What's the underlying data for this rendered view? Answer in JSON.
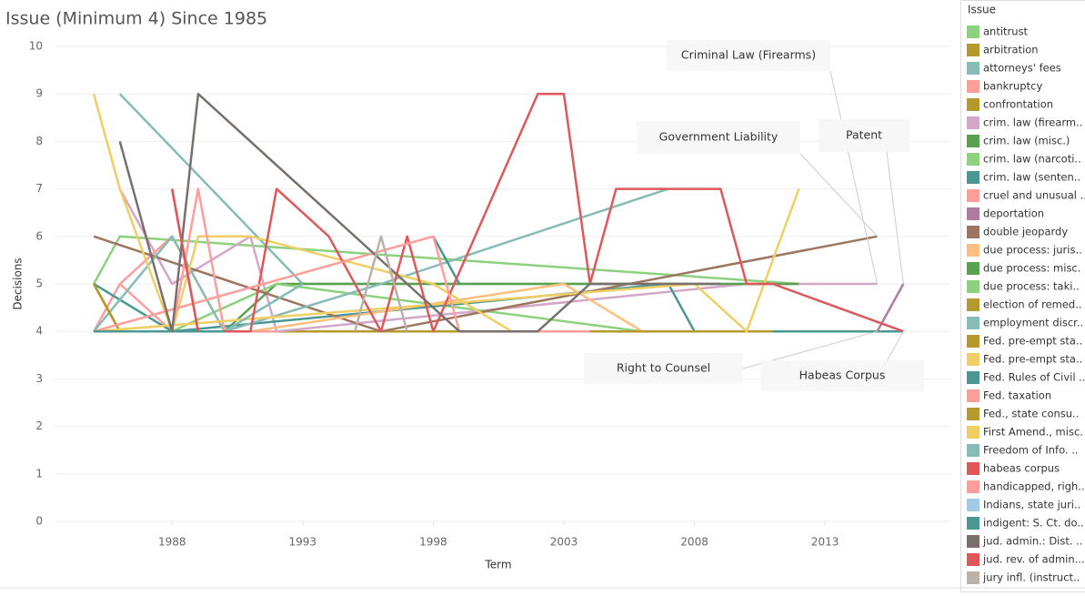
{
  "chart_data": {
    "type": "line",
    "title": "Issue  (Minimum 4) Since 1985",
    "x_label": "Term",
    "y_label": "Decisions",
    "legend_title": "Issue",
    "xlim": [
      1983.5,
      2017.8
    ],
    "xticks": [
      1988,
      1993,
      1998,
      2003,
      2008,
      2013
    ],
    "ylim": [
      0,
      10
    ],
    "yticks": [
      0,
      1,
      2,
      3,
      4,
      5,
      6,
      7,
      8,
      9,
      10
    ],
    "grid": true,
    "legend": "right",
    "annotations": [
      "Criminal Law (Firearms)",
      "Government Liability",
      "Patent",
      "Right to Counsel",
      "Habeas Corpus"
    ],
    "series": [
      {
        "name": "antitrust",
        "color": "#8cd17d",
        "x": [
          1985,
          1986,
          2012
        ],
        "values": [
          5,
          6,
          5
        ]
      },
      {
        "name": "arbitration",
        "color": "#b6992d",
        "x": [
          1985,
          1986,
          1988
        ],
        "values": [
          5,
          4,
          4
        ]
      },
      {
        "name": "attorneys' fees",
        "color": "#86bcb6",
        "x": [
          1986,
          1993,
          2012
        ],
        "values": [
          9,
          5,
          5
        ]
      },
      {
        "name": "bankruptcy",
        "color": "#ff9d9a",
        "x": [
          1985,
          1986,
          1988,
          1998
        ],
        "values": [
          4,
          5,
          4,
          4
        ]
      },
      {
        "name": "confrontation",
        "color": "#b6992d",
        "x": [
          1985,
          1986,
          2011
        ],
        "values": [
          5,
          4,
          4
        ]
      },
      {
        "name": "crim. law (firearm..",
        "color": "#d4a6c8",
        "x": [
          1986,
          1988,
          1991,
          1992,
          2010,
          2015
        ],
        "values": [
          7,
          5,
          6,
          4,
          5,
          5
        ]
      },
      {
        "name": "crim. law (misc.)",
        "color": "#59a14f",
        "x": [
          1985,
          1990,
          1992,
          2012
        ],
        "values": [
          4,
          4,
          5,
          5
        ]
      },
      {
        "name": "crim. law (narcoti..",
        "color": "#8cd17d",
        "x": [
          1985,
          1988,
          1992,
          2006
        ],
        "values": [
          4,
          4,
          5,
          4
        ]
      },
      {
        "name": "crim. law (senten..",
        "color": "#499894",
        "x": [
          1985,
          1988,
          2007,
          2008,
          2016
        ],
        "values": [
          5,
          4,
          5,
          4,
          4
        ]
      },
      {
        "name": "cruel and unusual ..",
        "color": "#ff9d9a",
        "x": [
          1986,
          1988,
          1990
        ],
        "values": [
          5,
          6,
          4
        ]
      },
      {
        "name": "deportation",
        "color": "#b07aa1",
        "x": [
          2015,
          2016
        ],
        "values": [
          4,
          5
        ]
      },
      {
        "name": "double jeopardy",
        "color": "#9d7660",
        "x": [
          1985,
          1996,
          2015
        ],
        "values": [
          6,
          4,
          6
        ]
      },
      {
        "name": "due process: juris..",
        "color": "#ffbe7d",
        "x": [
          1991,
          2003,
          2006
        ],
        "values": [
          4,
          5,
          4
        ]
      },
      {
        "name": "due process: misc.",
        "color": "#59a14f",
        "x": [
          1987,
          1990
        ],
        "values": [
          4,
          4
        ]
      },
      {
        "name": "due process: taki..",
        "color": "#8cd17d",
        "x": [
          1986,
          1992
        ],
        "values": [
          4,
          4
        ]
      },
      {
        "name": "election of remed..",
        "color": "#b6992d",
        "x": [
          2005,
          2011
        ],
        "values": [
          4,
          4
        ]
      },
      {
        "name": "employment discr..",
        "color": "#86bcb6",
        "x": [
          1985,
          1988,
          1990,
          1996,
          2007
        ],
        "values": [
          4,
          6,
          4,
          5,
          7
        ]
      },
      {
        "name": "Fed. pre-empt sta..",
        "color": "#b6992d",
        "x": [
          1986,
          1990
        ],
        "values": [
          4,
          4
        ]
      },
      {
        "name": "Fed. pre-empt sta..",
        "color": "#f1ce63",
        "x": [
          1985,
          1986,
          1988,
          1989,
          1991,
          1998,
          2001
        ],
        "values": [
          9,
          7,
          4,
          6,
          6,
          5,
          4
        ]
      },
      {
        "name": "Fed. Rules of Civil ..",
        "color": "#499894",
        "x": [
          1998,
          1999
        ],
        "values": [
          6,
          5
        ]
      },
      {
        "name": "Fed. taxation",
        "color": "#ff9d9a",
        "x": [
          1988,
          1989,
          1990,
          1992
        ],
        "values": [
          4,
          7,
          4,
          4
        ]
      },
      {
        "name": "Fed., state consu..",
        "color": "#b6992d",
        "x": [
          1985,
          1986
        ],
        "values": [
          5,
          4
        ]
      },
      {
        "name": "First Amend., misc.",
        "color": "#f1ce63",
        "x": [
          1985,
          2008,
          2010,
          2012
        ],
        "values": [
          4,
          5,
          4,
          7
        ]
      },
      {
        "name": "Freedom of Info. ..",
        "color": "#86bcb6",
        "x": [
          1985,
          1990,
          1993
        ],
        "values": [
          4,
          4,
          5
        ]
      },
      {
        "name": "habeas corpus",
        "color": "#e15759",
        "x": [
          1988,
          1989,
          1991,
          1992,
          1994,
          1996,
          1997,
          1998,
          2002,
          2003,
          2004,
          2005,
          2009,
          2010,
          2011,
          2016
        ],
        "values": [
          7,
          4,
          4,
          7,
          6,
          4,
          6,
          4,
          9,
          9,
          5,
          7,
          7,
          5,
          5,
          4
        ]
      },
      {
        "name": "handicapped, righ..",
        "color": "#ff9d9a",
        "x": [
          1985,
          1998,
          1999,
          2004
        ],
        "values": [
          4,
          6,
          4,
          4
        ]
      },
      {
        "name": "Indians, state juri..",
        "color": "#a0cbe8",
        "x": [
          1985,
          1987
        ],
        "values": [
          4,
          4
        ]
      },
      {
        "name": "indigent: S. Ct. do..",
        "color": "#499894",
        "x": [
          1985,
          1990
        ],
        "values": [
          4,
          4
        ]
      },
      {
        "name": "jud. admin.: Dist. ..",
        "color": "#79706e",
        "x": [
          1986,
          1988,
          1989,
          1997,
          1999,
          2002,
          2004,
          2009
        ],
        "values": [
          8,
          4,
          9,
          5,
          4,
          4,
          5,
          5
        ]
      },
      {
        "name": "jud. rev. of admin...",
        "color": "#e15759",
        "x": [
          1988,
          1989
        ],
        "values": [
          7,
          4
        ]
      },
      {
        "name": "jury infl. (instruct..",
        "color": "#bab0ac",
        "x": [
          1995,
          1996,
          1997
        ],
        "values": [
          4,
          6,
          4
        ]
      }
    ]
  }
}
